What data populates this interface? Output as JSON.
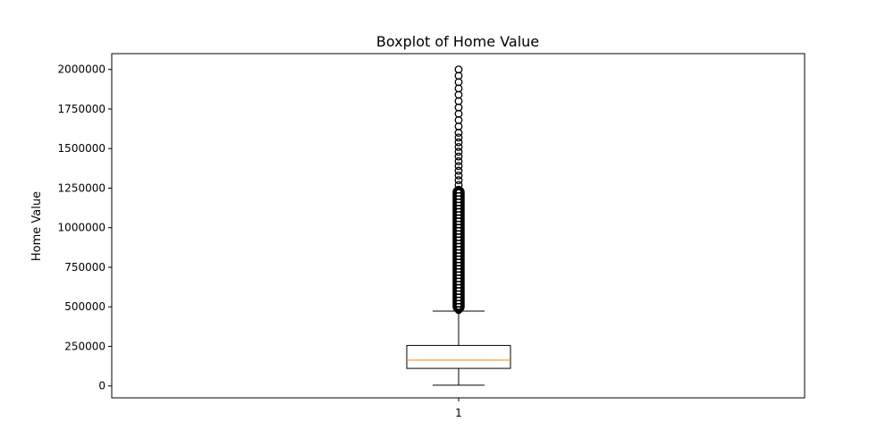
{
  "chart_data": {
    "type": "boxplot",
    "title": "Boxplot of Home Value",
    "xlabel": "",
    "ylabel": "Home Value",
    "categories": [
      "1"
    ],
    "ylim": [
      -75000,
      2100000
    ],
    "yticks": [
      0,
      250000,
      500000,
      750000,
      1000000,
      1250000,
      1500000,
      1750000,
      2000000
    ],
    "ytick_labels": [
      "0",
      "250000",
      "500000",
      "750000",
      "1000000",
      "1250000",
      "1500000",
      "1750000",
      "2000000"
    ],
    "grid": false,
    "boxes": [
      {
        "category": "1",
        "whisker_low": 5000,
        "q1": 111000,
        "median": 163000,
        "q3": 256000,
        "whisker_high": 473000,
        "outlier_range": [
          475000,
          2000000
        ],
        "outliers": [
          480000,
          500000,
          520000,
          540000,
          560000,
          580000,
          600000,
          620000,
          640000,
          660000,
          680000,
          700000,
          720000,
          740000,
          760000,
          780000,
          800000,
          820000,
          840000,
          860000,
          880000,
          900000,
          920000,
          940000,
          960000,
          980000,
          1000000,
          1020000,
          1040000,
          1060000,
          1080000,
          1100000,
          1120000,
          1140000,
          1160000,
          1180000,
          1200000,
          1220000,
          1240000,
          1270000,
          1300000,
          1330000,
          1360000,
          1390000,
          1420000,
          1450000,
          1480000,
          1510000,
          1540000,
          1570000,
          1600000,
          1640000,
          1680000,
          1720000,
          1760000,
          1800000,
          1840000,
          1880000,
          1920000,
          1960000,
          2000000
        ]
      }
    ],
    "colors": {
      "median": "#ff7f0e",
      "box": "#000000",
      "axis": "#000000",
      "background": "#ffffff"
    }
  }
}
